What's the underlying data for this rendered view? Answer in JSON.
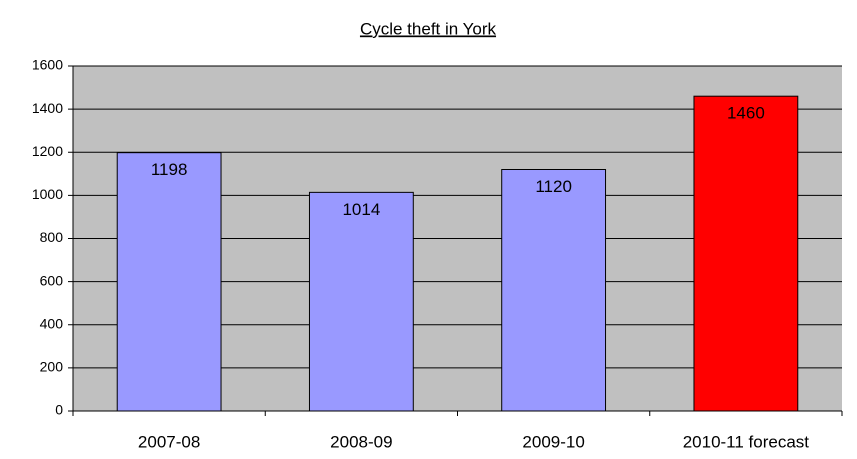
{
  "chart_data": {
    "type": "bar",
    "title": "Cycle theft in York",
    "categories": [
      "2007-08",
      "2008-09",
      "2009-10",
      "2010-11 forecast"
    ],
    "values": [
      1198,
      1014,
      1120,
      1460
    ],
    "colors": [
      "#9999ff",
      "#9999ff",
      "#9999ff",
      "#ff0000"
    ],
    "ylim": [
      0,
      1600
    ],
    "yticks": [
      0,
      200,
      400,
      600,
      800,
      1000,
      1200,
      1400,
      1600
    ],
    "grid": true
  }
}
